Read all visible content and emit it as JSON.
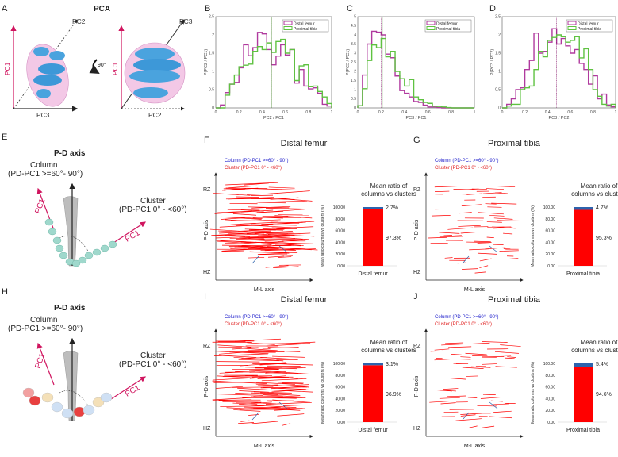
{
  "colors": {
    "distal": "#b03a9e",
    "proximal": "#5fc241",
    "cluster": "#ff0000",
    "column": "#2d63ad",
    "pc1": "#d0155f",
    "column_text": "#2222cc",
    "cluster_text": "#e02020"
  },
  "panelA": {
    "label": "A",
    "title": "PCA",
    "left_axes": {
      "y": "PC1",
      "x": "PC3",
      "diag": "PC2"
    },
    "right_axes": {
      "y": "PC1",
      "x": "PC2",
      "diag": "PC3"
    },
    "rotation": "90°"
  },
  "panelE": {
    "label": "E",
    "title": "P-D axis",
    "column_label": "Column",
    "column_range": "(PD-PC1 >=60°- 90°)",
    "cluster_label": "Cluster",
    "cluster_range": "(PD-PC1 0° - <60°)",
    "pc1_label": "PC1"
  },
  "panelH": {
    "label": "H",
    "title": "P-D axis",
    "column_label": "Column",
    "column_range": "(PD-PC1 >=60°- 90°)",
    "cluster_label": "Cluster",
    "cluster_range": "(PD-PC1 0° - <60°)",
    "pc1_label": "PC1"
  },
  "legend_orientation": {
    "column": "Column (PD-PC1 >=60° - 90°)",
    "cluster": "Cluster (PD-PC1 0° - <60°)",
    "y_axis": "P-D axis",
    "x_axis": "M-L axis",
    "top": "RZ",
    "bottom": "HZ"
  },
  "chart_data": [
    {
      "id": "B",
      "type": "line",
      "style": "step-histogram",
      "xlabel": "PC2 / PC1",
      "ylabel": "P(PC2 / PC1)",
      "xlim": [
        0,
        1
      ],
      "ylim": [
        0,
        2.5
      ],
      "xticks": [
        "0",
        "0.2",
        "0.4",
        "0.6",
        "0.8",
        "1"
      ],
      "yticks": [
        "0",
        "0.5",
        "1",
        "1.5",
        "2",
        "2.5"
      ],
      "bin_width": 0.04,
      "legend": "top-right",
      "means": {
        "Distal femur": 0.48,
        "Proximal tibia": 0.48
      },
      "series": [
        {
          "name": "Distal femur",
          "values": [
            0,
            0.08,
            0.42,
            0.65,
            0.7,
            1.1,
            1.73,
            1.43,
            1.65,
            2.07,
            2.03,
            1.6,
            1.18,
            1.42,
            1.73,
            1.45,
            1.6,
            0.68,
            1.05,
            0.6,
            0.52,
            0.55,
            0.4,
            0.1,
            0.05
          ]
        },
        {
          "name": "Proximal tibia",
          "values": [
            0,
            0,
            0.35,
            0.65,
            0.9,
            1.13,
            1.17,
            1.2,
            1.55,
            1.68,
            1.6,
            1.78,
            1.52,
            1.82,
            1.88,
            1.5,
            1.6,
            0.75,
            1.15,
            1.18,
            0.58,
            0.6,
            0.45,
            0.3,
            0.12
          ]
        }
      ]
    },
    {
      "id": "C",
      "type": "line",
      "style": "step-histogram",
      "xlabel": "PC3 / PC1",
      "ylabel": "P(PC3 / PC1)",
      "xlim": [
        0,
        1
      ],
      "ylim": [
        0,
        5
      ],
      "xticks": [
        "0",
        "0.2",
        "0.4",
        "0.6",
        "0.8",
        "1"
      ],
      "yticks": [
        "0",
        "0.5",
        "1",
        "1.5",
        "2",
        "2.5",
        "3",
        "3.5",
        "4",
        "4.5",
        "5"
      ],
      "bin_width": 0.04,
      "legend": "top-right",
      "means": {
        "Distal femur": 0.2,
        "Proximal tibia": 0.21
      },
      "series": [
        {
          "name": "Distal femur",
          "values": [
            0.12,
            1.8,
            3.5,
            4.2,
            4.15,
            4.0,
            2.95,
            2.75,
            1.75,
            0.95,
            0.8,
            0.6,
            0.35,
            0.3,
            0.15,
            0.05,
            0.05,
            0.02,
            0,
            0,
            0,
            0,
            0,
            0,
            0
          ]
        },
        {
          "name": "Proximal tibia",
          "values": [
            0.12,
            1.05,
            2.6,
            3.45,
            3.3,
            3.8,
            2.8,
            3.1,
            2.0,
            1.6,
            1.2,
            1.55,
            0.6,
            0.45,
            0.3,
            0.25,
            0.1,
            0.08,
            0.05,
            0.02,
            0,
            0,
            0,
            0,
            0
          ]
        }
      ]
    },
    {
      "id": "D",
      "type": "line",
      "style": "step-histogram",
      "xlabel": "PC3 / PC2",
      "ylabel": "P(PC3 / PC2)",
      "xlim": [
        0,
        1
      ],
      "ylim": [
        0,
        2.5
      ],
      "xticks": [
        "0",
        "0.2",
        "0.4",
        "0.6",
        "0.8",
        "1"
      ],
      "yticks": [
        "0",
        "0.5",
        "1",
        "1.5",
        "2",
        "2.5"
      ],
      "bin_width": 0.04,
      "legend": "top-right",
      "means": {
        "Distal femur": 0.48,
        "Proximal tibia": 0.5
      },
      "series": [
        {
          "name": "Distal femur",
          "values": [
            0,
            0.1,
            0.25,
            0.5,
            0.55,
            1.05,
            1.3,
            2.05,
            1.5,
            1.55,
            1.8,
            2.17,
            1.75,
            1.9,
            1.7,
            1.5,
            1.6,
            1.22,
            1.05,
            0.65,
            0.88,
            0.25,
            0.38,
            0.08,
            0.03
          ]
        },
        {
          "name": "Proximal tibia",
          "values": [
            0,
            0.05,
            0.1,
            0.1,
            0.5,
            0.55,
            0.6,
            1.05,
            1.55,
            1.4,
            1.85,
            1.93,
            2.0,
            1.95,
            1.8,
            1.85,
            1.95,
            1.37,
            1.62,
            1.05,
            0.5,
            0.32,
            0.1,
            0.05,
            0.1
          ]
        }
      ]
    },
    {
      "id": "F",
      "type": "bar",
      "stacked": true,
      "panel_title": "Distal femur",
      "title": "Mean ratio of columns vs clusters",
      "ylabel": "Mean ratio columns vs clusters (%)",
      "ylim": [
        0,
        100
      ],
      "yticks": [
        "0.00",
        "20.00",
        "40.00",
        "60.00",
        "80.00",
        "100.00"
      ],
      "categories": [
        "Distal femur"
      ],
      "series": [
        {
          "name": "Cluster",
          "values": [
            97.3
          ],
          "label": "97.3%"
        },
        {
          "name": "Column",
          "values": [
            2.7
          ],
          "label": "2.7%"
        }
      ]
    },
    {
      "id": "G",
      "type": "bar",
      "stacked": true,
      "panel_title": "Proximal tibia",
      "title": "Mean ratio of columns vs clusters",
      "ylabel": "Mean ratio columns vs clusters (%)",
      "ylim": [
        0,
        100
      ],
      "yticks": [
        "0.00",
        "20.00",
        "40.00",
        "60.00",
        "80.00",
        "100.00"
      ],
      "categories": [
        "Proximal tibia"
      ],
      "series": [
        {
          "name": "Cluster",
          "values": [
            95.3
          ],
          "label": "95.3%"
        },
        {
          "name": "Column",
          "values": [
            4.7
          ],
          "label": "4.7%"
        }
      ]
    },
    {
      "id": "I",
      "type": "bar",
      "stacked": true,
      "panel_title": "Distal femur",
      "title": "Mean ratio of columns vs clusters",
      "ylabel": "Mean ratio columns vs clusters (%)",
      "ylim": [
        0,
        100
      ],
      "yticks": [
        "0.00",
        "20.00",
        "40.00",
        "60.00",
        "80.00",
        "100.00"
      ],
      "categories": [
        "Distal femur"
      ],
      "series": [
        {
          "name": "Cluster",
          "values": [
            96.9
          ],
          "label": "96.9%"
        },
        {
          "name": "Column",
          "values": [
            3.1
          ],
          "label": "3.1%"
        }
      ]
    },
    {
      "id": "J",
      "type": "bar",
      "stacked": true,
      "panel_title": "Proximal tibia",
      "title": "Mean ratio of columns vs clusters",
      "ylabel": "Mean ratio columns vs clusters (%)",
      "ylim": [
        0,
        100
      ],
      "yticks": [
        "0.00",
        "20.00",
        "40.00",
        "60.00",
        "80.00",
        "100.00"
      ],
      "categories": [
        "Proximal tibia"
      ],
      "series": [
        {
          "name": "Cluster",
          "values": [
            94.6
          ],
          "label": "94.6%"
        },
        {
          "name": "Column",
          "values": [
            5.4
          ],
          "label": "5.4%"
        }
      ]
    }
  ]
}
